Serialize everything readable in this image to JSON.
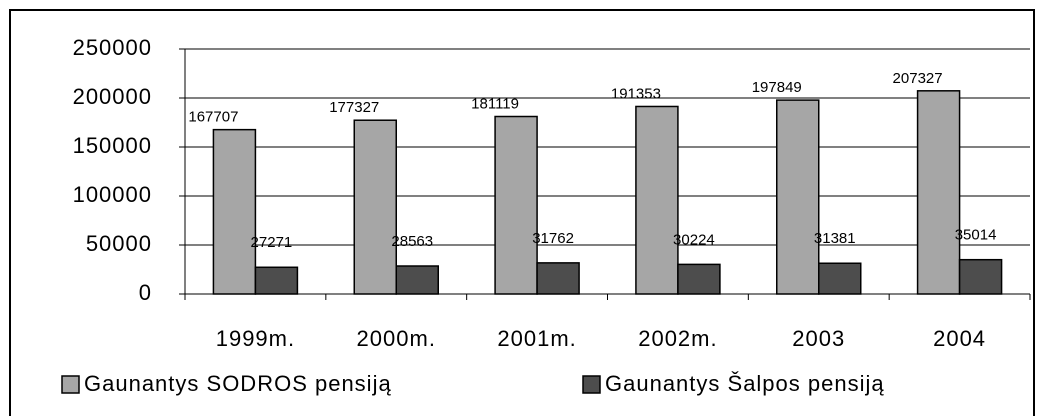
{
  "chart_data": {
    "type": "bar",
    "categories": [
      "1999m.",
      "2000m.",
      "2001m.",
      "2002m.",
      "2003",
      "2004"
    ],
    "series": [
      {
        "name": "Gaunantys SODROS pensiją",
        "color": "#a6a6a6",
        "values": [
          167707,
          177327,
          181119,
          191353,
          197849,
          207327
        ]
      },
      {
        "name": "Gaunantys Šalpos pensiją",
        "color": "#4d4d4d",
        "values": [
          27271,
          28563,
          31762,
          30224,
          31381,
          35014
        ]
      }
    ],
    "ylim": [
      0,
      250000
    ],
    "yticks": [
      0,
      50000,
      100000,
      150000,
      200000,
      250000
    ],
    "grid": true,
    "legend": "bottom"
  }
}
